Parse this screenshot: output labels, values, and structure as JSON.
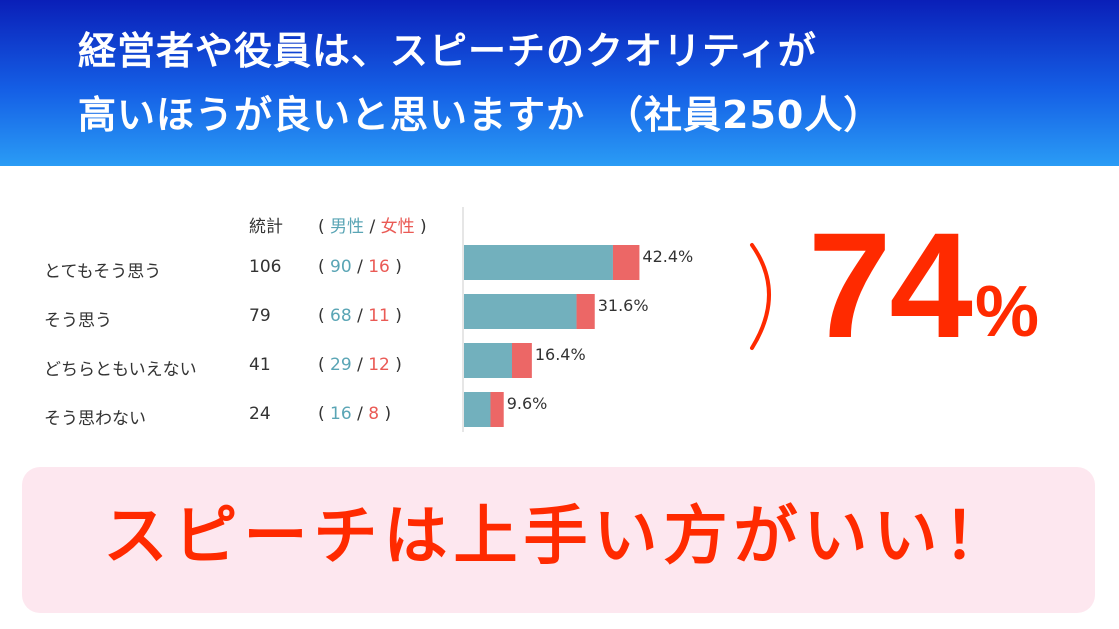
{
  "header": {
    "title_line1": "経営者や役員は、スピーチのクオリティが",
    "title_line2": "高いほうが良いと思いますか　（社員250人）"
  },
  "columns": {
    "total": "統計",
    "open_paren": "(",
    "male": "男性",
    "slash": "/",
    "female": "女性",
    "close_paren": ")"
  },
  "colors": {
    "male": "#72b0bd",
    "female": "#ec6766",
    "highlight": "#ff2a00",
    "banner_bg": "#fde7ef"
  },
  "chart_data": {
    "type": "bar",
    "orientation": "horizontal",
    "stacked": true,
    "categories": [
      "とてもそう思う",
      "そう思う",
      "どちらともいえない",
      "そう思わない"
    ],
    "series": [
      {
        "name": "男性",
        "values": [
          90,
          68,
          29,
          16
        ]
      },
      {
        "name": "女性",
        "values": [
          16,
          11,
          12,
          8
        ]
      }
    ],
    "totals": [
      106,
      79,
      41,
      24
    ],
    "data_labels": [
      "42.4%",
      "31.6%",
      "16.4%",
      "9.6%"
    ]
  },
  "callout": {
    "number": "74",
    "unit": "%"
  },
  "banner": {
    "text": "スピーチは上手い方がいい！"
  }
}
